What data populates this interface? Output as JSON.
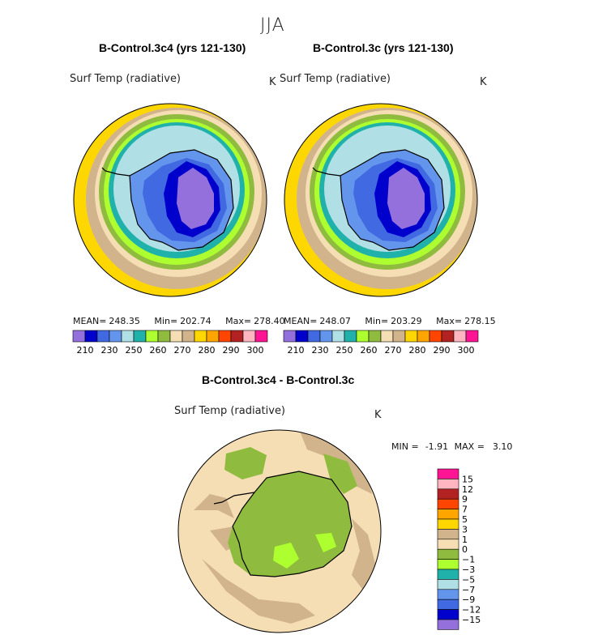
{
  "figure": {
    "season": "JJA",
    "units": "K",
    "variable": "Surf Temp (radiative)"
  },
  "panels": [
    {
      "title": "B-Control.3c4 (yrs 121-130)",
      "mean_label": "MEAN=",
      "mean": "248.35",
      "min_label": "Min=",
      "min": "202.74",
      "max_label": "Max=",
      "max": "278.40"
    },
    {
      "title": "B-Control.3c (yrs 121-130)",
      "mean_label": "MEAN=",
      "mean": "248.07",
      "min_label": "Min=",
      "min": "203.29",
      "max_label": "Max=",
      "max": "278.15"
    }
  ],
  "diff": {
    "title": "B-Control.3c4 - B-Control.3c",
    "min_label": "MIN =",
    "min": "-1.91",
    "max_label": "MAX =",
    "max": "3.10"
  },
  "colors": {
    "abs_scale": [
      "#9370db",
      "#0000cd",
      "#4169e1",
      "#6495ed",
      "#b0e0e6",
      "#20b2aa",
      "#adff2f",
      "#8fbc3f",
      "#f5deb3",
      "#d2b48c",
      "#ffd700",
      "#ffa500",
      "#ff4500",
      "#b22222",
      "#ffb6c1",
      "#ff1493"
    ],
    "diff_scale": [
      "#ff1493",
      "#ffb6c1",
      "#b22222",
      "#ff4500",
      "#ffa500",
      "#ffd700",
      "#d2b48c",
      "#f5deb3",
      "#8fbc3f",
      "#adff2f",
      "#20b2aa",
      "#b0e0e6",
      "#6495ed",
      "#4169e1",
      "#0000cd",
      "#9370db"
    ]
  },
  "chart_data": [
    {
      "type": "heatmap",
      "title": "B-Control.3c4 (yrs 121-130)",
      "projection": "south polar stereographic",
      "colorbar_ticks": [
        "210",
        "230",
        "250",
        "260",
        "270",
        "280",
        "290",
        "300"
      ],
      "levels": [
        210,
        220,
        230,
        240,
        250,
        255,
        260,
        265,
        270,
        275,
        280,
        285,
        290,
        295,
        300
      ],
      "stats": {
        "mean": 248.35,
        "min": 202.74,
        "max": 278.4
      }
    },
    {
      "type": "heatmap",
      "title": "B-Control.3c (yrs 121-130)",
      "projection": "south polar stereographic",
      "colorbar_ticks": [
        "210",
        "230",
        "250",
        "260",
        "270",
        "280",
        "290",
        "300"
      ],
      "levels": [
        210,
        220,
        230,
        240,
        250,
        255,
        260,
        265,
        270,
        275,
        280,
        285,
        290,
        295,
        300
      ],
      "stats": {
        "mean": 248.07,
        "min": 203.29,
        "max": 278.15
      }
    },
    {
      "type": "heatmap",
      "title": "B-Control.3c4 - B-Control.3c",
      "projection": "south polar stereographic",
      "colorbar_ticks": [
        "15",
        "12",
        "9",
        "7",
        "5",
        "3",
        "1",
        "0",
        "−1",
        "−3",
        "−5",
        "−7",
        "−9",
        "−12",
        "−15"
      ],
      "levels": [
        15,
        12,
        9,
        7,
        5,
        3,
        1,
        0,
        -1,
        -3,
        -5,
        -7,
        -9,
        -12,
        -15
      ],
      "stats": {
        "min": -1.91,
        "max": 3.1
      }
    }
  ]
}
